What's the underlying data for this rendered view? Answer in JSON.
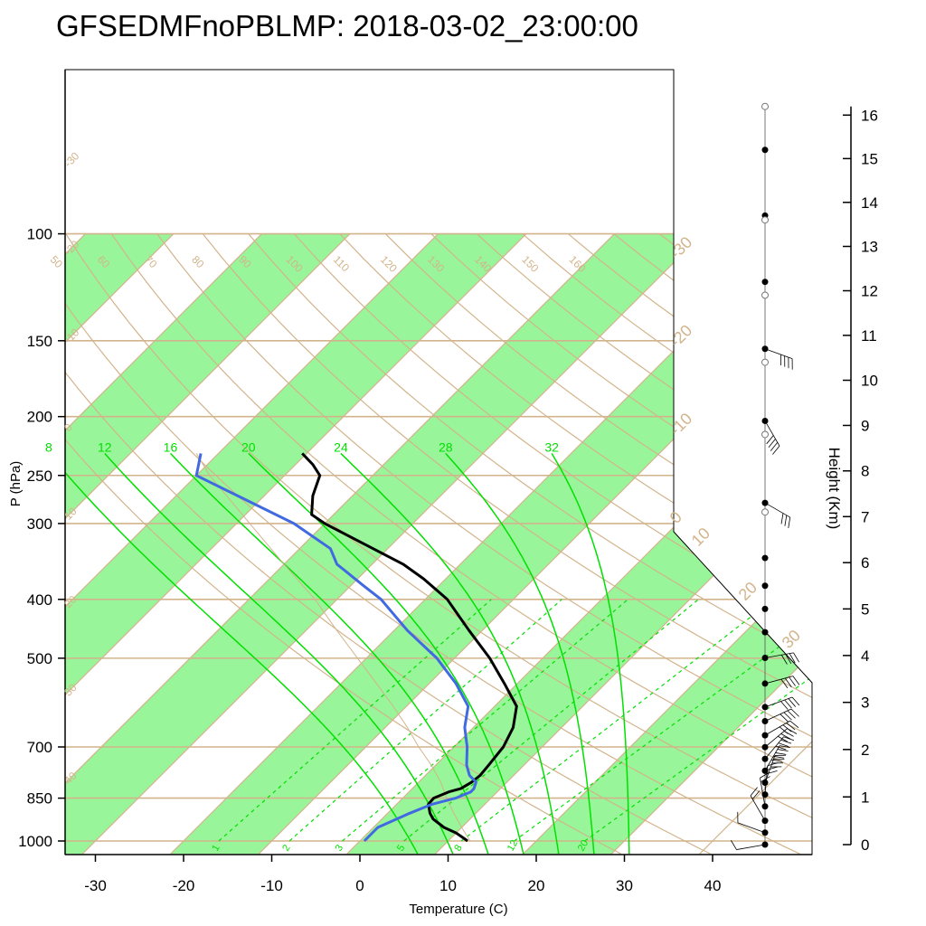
{
  "title": "GFSEDMFnoPBLMP: 2018-03-02_23:00:00",
  "colors": {
    "band_fill": "#99f599",
    "line_tan": "#d2b48c",
    "moist_green": "#00e000",
    "temperature": "#000000",
    "dewpoint": "#4169e1"
  },
  "chart_data": {
    "type": "line",
    "subtype": "skew-T log-P diagram",
    "xlabel": "Temperature (C)",
    "ylabel": "P (hPa)",
    "ylabel_right": "Height (Km)",
    "x_ticks": [
      "-30",
      "-20",
      "-10",
      "0",
      "10",
      "20",
      "30",
      "40"
    ],
    "x_tick_values": [
      -30,
      -20,
      -10,
      0,
      10,
      20,
      30,
      40
    ],
    "y_ticks": [
      "100",
      "150",
      "200",
      "250",
      "300",
      "400",
      "500",
      "700",
      "850",
      "1000"
    ],
    "y_tick_values": [
      100,
      150,
      200,
      250,
      300,
      400,
      500,
      700,
      850,
      1000
    ],
    "height_ticks": [
      "0",
      "1",
      "2",
      "3",
      "4",
      "5",
      "6",
      "7",
      "8",
      "9",
      "10",
      "11",
      "12",
      "13",
      "14",
      "15",
      "16"
    ],
    "height_tick_values": [
      0,
      1,
      2,
      3,
      4,
      5,
      6,
      7,
      8,
      9,
      10,
      11,
      12,
      13,
      14,
      15,
      16
    ],
    "xlim": [
      -33.5,
      35
    ],
    "ylim": [
      100,
      1050
    ],
    "skew": "isotherms tilted 45 degrees",
    "pressure_scale": "log",
    "isotherms": [
      -100,
      -90,
      -80,
      -70,
      -60,
      -50,
      -40,
      -30,
      -20,
      -10,
      0,
      10,
      20,
      30,
      40
    ],
    "isotherm_labels": [
      "-30",
      "-20",
      "-10",
      "0",
      "10",
      "20",
      "30"
    ],
    "isotherm_label_values": [
      -30,
      -20,
      -10,
      0,
      10,
      20,
      30
    ],
    "left_edge_labels": [
      "40",
      "30",
      "20",
      "10",
      "0",
      "-10",
      "-20",
      "-30"
    ],
    "left_edge_values": [
      -40,
      -50,
      -60,
      -70,
      -80,
      -90,
      -100,
      -110
    ],
    "dry_adiabats_k": [
      300,
      310,
      320,
      330,
      340,
      350,
      360,
      370,
      380,
      390,
      400,
      410,
      420,
      430,
      440,
      450,
      460,
      470,
      480,
      490,
      500
    ],
    "dry_adiabat_labels": [
      "50",
      "60",
      "70",
      "80",
      "90",
      "100",
      "110",
      "120",
      "130",
      "140",
      "150",
      "160"
    ],
    "dry_adiabat_label_values": [
      50,
      60,
      70,
      80,
      90,
      100,
      110,
      120,
      130,
      140,
      150,
      160
    ],
    "moist_adiabats": [
      8,
      12,
      16,
      20,
      24,
      28,
      32
    ],
    "moist_adiabat_labels": [
      "8",
      "12",
      "16",
      "20",
      "24",
      "28",
      "32"
    ],
    "mixing_ratio_labels": [
      "1",
      "2",
      "3",
      "5",
      "8",
      "12",
      "20"
    ],
    "mixing_ratio_values": [
      1,
      2,
      3,
      5,
      8,
      12,
      20
    ],
    "mixing_ratio_bottom_temps": [
      -16,
      -8,
      -2,
      5,
      11.5,
      17.5,
      25.5
    ],
    "mixing_ratio_top_temps": [
      -12.5,
      -4.5,
      3,
      11,
      19.5,
      27.5,
      36
    ],
    "series": [
      {
        "key": "temperature",
        "pressure": [
          1000,
          990,
          970,
          950,
          920,
          900,
          870,
          850,
          830,
          820,
          800,
          780,
          750,
          700,
          650,
          600,
          550,
          500,
          450,
          400,
          370,
          350,
          300,
          290,
          270,
          250,
          240,
          230
        ],
        "values": [
          12.2,
          11.5,
          10.0,
          8.0,
          5.8,
          4.8,
          3.6,
          3.5,
          4.5,
          5.5,
          6.0,
          6.2,
          6.0,
          5.6,
          4.5,
          2.5,
          -1.5,
          -6.0,
          -11.5,
          -17.5,
          -22.5,
          -26.5,
          -40.0,
          -42.5,
          -44.5,
          -46.0,
          -48.0,
          -50.5
        ]
      },
      {
        "key": "dewpoint",
        "pressure": [
          1000,
          950,
          900,
          870,
          850,
          830,
          820,
          800,
          780,
          750,
          700,
          650,
          600,
          550,
          500,
          450,
          400,
          380,
          350,
          330,
          300,
          250,
          230
        ],
        "values": [
          0.5,
          0.5,
          2.5,
          4.0,
          6.0,
          7.0,
          7.0,
          6.5,
          5.0,
          3.5,
          1.5,
          -1.0,
          -3.0,
          -7.0,
          -12.0,
          -18.5,
          -25.0,
          -28.5,
          -34.0,
          -36.5,
          -43.5,
          -60.0,
          -62.0
        ]
      }
    ],
    "parcel_path": {
      "pressure": [
        1000,
        950,
        900,
        850,
        800,
        750,
        700,
        650,
        600,
        550,
        500,
        450,
        400,
        350,
        300,
        250,
        230
      ],
      "values": [
        12.5,
        10.0,
        7.5,
        5.0,
        2.5,
        -0.5,
        -4.0,
        -7.5,
        -11.5,
        -16.0,
        -21.0,
        -26.5,
        -32.5,
        -40.0,
        -48.5,
        -58.5,
        -62.5
      ]
    },
    "wind_profile": {
      "marker_column": "right of plot",
      "filled_level_heights_km": [
        0,
        0.25,
        0.5,
        0.8,
        1.05,
        1.3,
        1.55,
        1.8,
        2.05,
        2.3,
        2.6,
        2.9,
        3.4,
        3.95,
        4.5,
        5.0,
        5.5,
        6.1,
        7.3,
        9.1,
        10.7,
        12.2,
        13.7,
        15.2
      ],
      "open_level_heights_km": [
        7.1,
        8.8,
        10.4,
        11.9,
        13.6,
        16.2
      ],
      "barbs": [
        {
          "height_km": 0.0,
          "dir": 80,
          "speed": 10
        },
        {
          "height_km": 0.25,
          "dir": 110,
          "speed": 12
        },
        {
          "height_km": 0.5,
          "dir": 150,
          "speed": 15
        },
        {
          "height_km": 0.8,
          "dir": 170,
          "speed": 20
        },
        {
          "height_km": 1.05,
          "dir": 185,
          "speed": 30
        },
        {
          "height_km": 1.3,
          "dir": 200,
          "speed": 40
        },
        {
          "height_km": 1.55,
          "dir": 210,
          "speed": 45
        },
        {
          "height_km": 1.8,
          "dir": 220,
          "speed": 40
        },
        {
          "height_km": 2.05,
          "dir": 230,
          "speed": 35
        },
        {
          "height_km": 2.3,
          "dir": 240,
          "speed": 35
        },
        {
          "height_km": 2.6,
          "dir": 245,
          "speed": 35
        },
        {
          "height_km": 2.9,
          "dir": 250,
          "speed": 35
        },
        {
          "height_km": 3.4,
          "dir": 255,
          "speed": 35
        },
        {
          "height_km": 3.95,
          "dir": 260,
          "speed": 40
        },
        {
          "height_km": 7.3,
          "dir": 300,
          "speed": 25
        },
        {
          "height_km": 9.1,
          "dir": 330,
          "speed": 35
        },
        {
          "height_km": 10.7,
          "dir": 290,
          "speed": 40
        }
      ]
    }
  }
}
